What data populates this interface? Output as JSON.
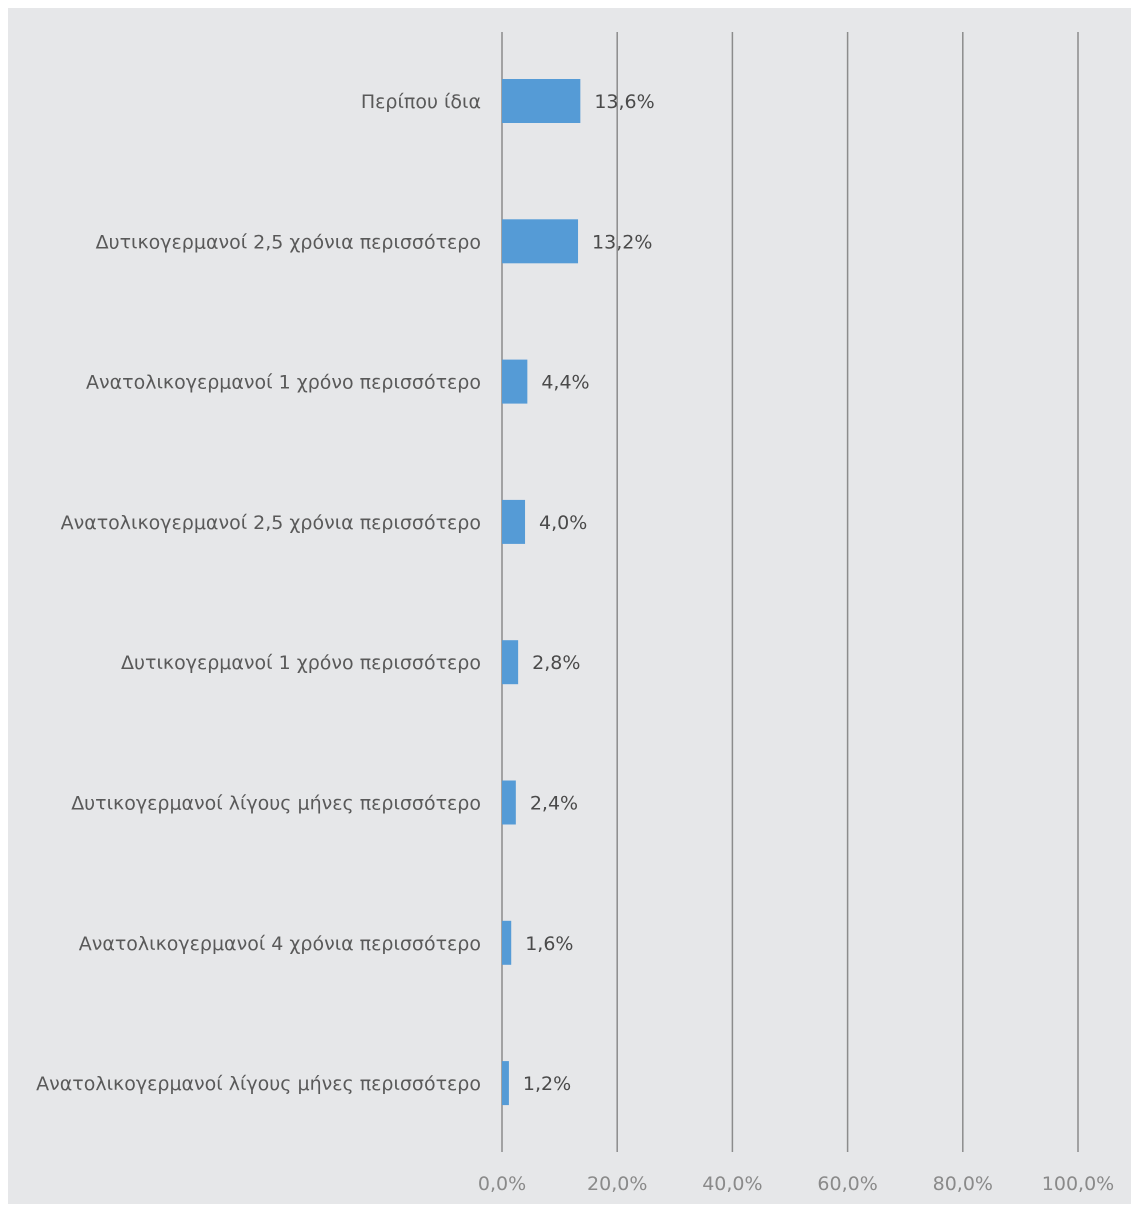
{
  "chart_data": {
    "type": "bar",
    "orientation": "horizontal",
    "categories": [
      "Περίπου ίδια",
      "Δυτικογερμανοί 2,5 χρόνια περισσότερο",
      "Ανατολικογερμανοί 1 χρόνο περισσότερο",
      "Ανατολικογερμανοί 2,5 χρόνια περισσότερο",
      "Δυτικογερμανοί 1 χρόνο περισσότερο",
      "Δυτικογερμανοί λίγους μήνες περισσότερο",
      "Ανατολικογερμανοί 4 χρόνια περισσότερο",
      "Ανατολικογερμανοί λίγους μήνες περισσότερο"
    ],
    "values": [
      13.6,
      13.2,
      4.4,
      4.0,
      2.8,
      2.4,
      1.6,
      1.2
    ],
    "value_labels": [
      "13,6%",
      "13,2%",
      "4,4%",
      "4,0%",
      "2,8%",
      "2,4%",
      "1,6%",
      "1,2%"
    ],
    "xlim": [
      0,
      100
    ],
    "x_ticks": [
      0,
      20,
      40,
      60,
      80,
      100
    ],
    "x_tick_labels": [
      "0,0%",
      "20,0%",
      "40,0%",
      "60,0%",
      "80,0%",
      "100,0%"
    ],
    "grid": true,
    "legend": "none",
    "colors": {
      "bar": "#559bd6",
      "background": "#e6e7e9",
      "gridline": "#8c8c8c"
    }
  }
}
